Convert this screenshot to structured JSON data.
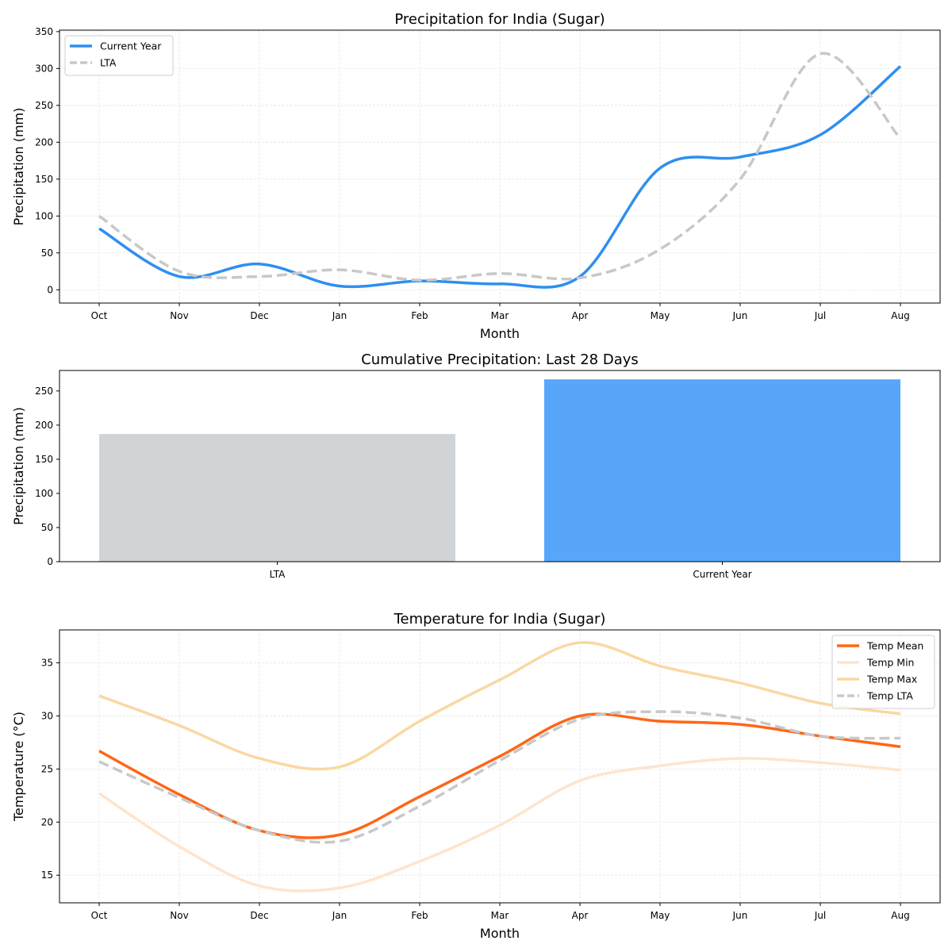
{
  "chart_data": [
    {
      "type": "line",
      "title": "Precipitation for India (Sugar)",
      "xlabel": "Month",
      "ylabel": "Precipitation (mm)",
      "categories": [
        "Oct",
        "Nov",
        "Dec",
        "Jan",
        "Feb",
        "Mar",
        "Apr",
        "May",
        "Jun",
        "Jul",
        "Aug"
      ],
      "ylim": [
        -18,
        352
      ],
      "yticks": [
        0,
        50,
        100,
        150,
        200,
        250,
        300,
        350
      ],
      "grid": true,
      "legend_position": "top-left",
      "series": [
        {
          "name": "Current Year",
          "color": "#2e8ff0",
          "style": "solid",
          "values": [
            83,
            18,
            35,
            5,
            12,
            8,
            18,
            165,
            180,
            210,
            303
          ]
        },
        {
          "name": "LTA",
          "color": "#c8c8c8",
          "style": "dashed",
          "values": [
            100,
            25,
            18,
            27,
            13,
            22,
            16,
            55,
            150,
            320,
            205
          ]
        }
      ]
    },
    {
      "type": "bar",
      "title": "Cumulative Precipitation: Last 28 Days",
      "xlabel": "",
      "ylabel": "Precipitation (mm)",
      "categories": [
        "LTA",
        "Current Year"
      ],
      "values": [
        187,
        267
      ],
      "colors": [
        "#d1d4d7",
        "#58a6fa"
      ],
      "ylim": [
        0,
        280
      ],
      "yticks": [
        0,
        50,
        100,
        150,
        200,
        250
      ]
    },
    {
      "type": "line",
      "title": "Temperature for India (Sugar)",
      "xlabel": "Month",
      "ylabel": "Temperature (°C)",
      "categories": [
        "Oct",
        "Nov",
        "Dec",
        "Jan",
        "Feb",
        "Mar",
        "Apr",
        "May",
        "Jun",
        "Jul",
        "Aug"
      ],
      "ylim": [
        12.4,
        38.1
      ],
      "yticks": [
        15,
        20,
        25,
        30,
        35
      ],
      "grid": true,
      "legend_position": "top-right",
      "series": [
        {
          "name": "Temp Mean",
          "color": "#ff6616",
          "style": "solid",
          "values": [
            26.7,
            22.6,
            19.2,
            18.8,
            22.4,
            26.2,
            30.0,
            29.5,
            29.2,
            28.1,
            27.1
          ]
        },
        {
          "name": "Temp Min",
          "color": "#ffe4cc",
          "style": "solid",
          "values": [
            22.7,
            17.7,
            14.0,
            13.8,
            16.3,
            19.7,
            23.9,
            25.3,
            26.0,
            25.6,
            24.9
          ]
        },
        {
          "name": "Temp Max",
          "color": "#fad8a2",
          "style": "solid",
          "values": [
            31.9,
            29.1,
            26.0,
            25.2,
            29.5,
            33.4,
            36.9,
            34.7,
            33.1,
            31.2,
            30.2
          ]
        },
        {
          "name": "Temp LTA",
          "color": "#c8c8c8",
          "style": "dashed",
          "values": [
            25.7,
            22.3,
            19.2,
            18.2,
            21.5,
            25.8,
            29.7,
            30.4,
            29.8,
            28.1,
            27.9
          ]
        }
      ]
    }
  ]
}
